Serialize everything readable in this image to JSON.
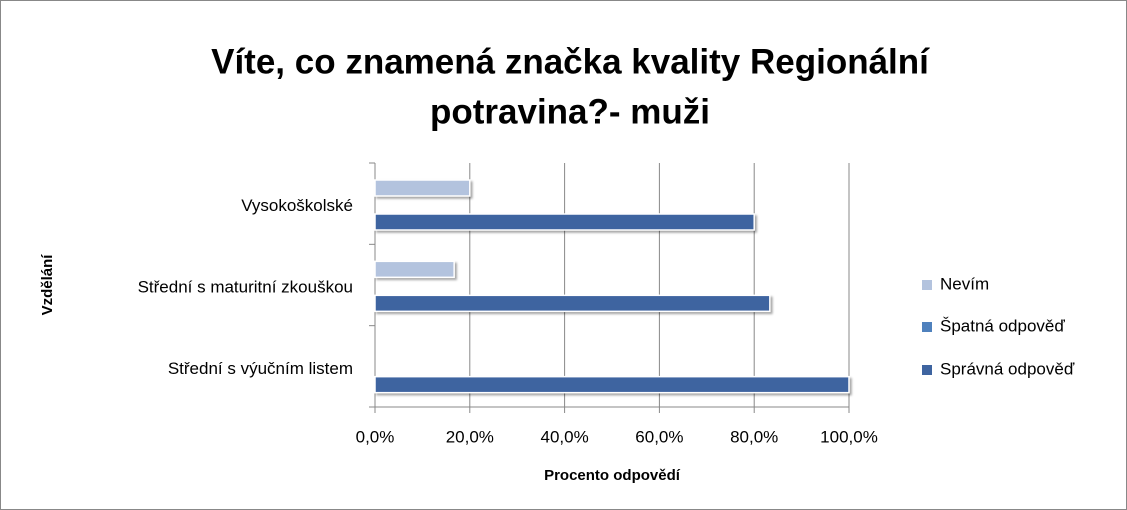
{
  "chart_data": {
    "type": "barh",
    "title": [
      "Víte, co znamená značka kvality Regionální",
      "potravina?- muži"
    ],
    "xlabel": "Procento odpovědí",
    "ylabel": "Vzdělání",
    "categories": [
      "Vysokoškolské",
      "Střední s maturitní zkouškou",
      "Střední s výučním listem"
    ],
    "series": [
      {
        "name": "Nevím",
        "color": "#b3c3de",
        "values": [
          20,
          16.7,
          0
        ]
      },
      {
        "name": "Špatná odpověď",
        "color": "#4f81bd",
        "values": [
          0,
          0,
          0
        ]
      },
      {
        "name": "Správná odpověď",
        "color": "#3e64a0",
        "values": [
          80,
          83.3,
          100
        ]
      }
    ],
    "xlim": [
      0,
      100
    ],
    "xticks": [
      {
        "value": 0,
        "label": "0,0%"
      },
      {
        "value": 20,
        "label": "20,0%"
      },
      {
        "value": 40,
        "label": "40,0%"
      },
      {
        "value": 60,
        "label": "60,0%"
      },
      {
        "value": 80,
        "label": "80,0%"
      },
      {
        "value": 100,
        "label": "100,0%"
      }
    ],
    "grid": true,
    "legend": "right"
  }
}
